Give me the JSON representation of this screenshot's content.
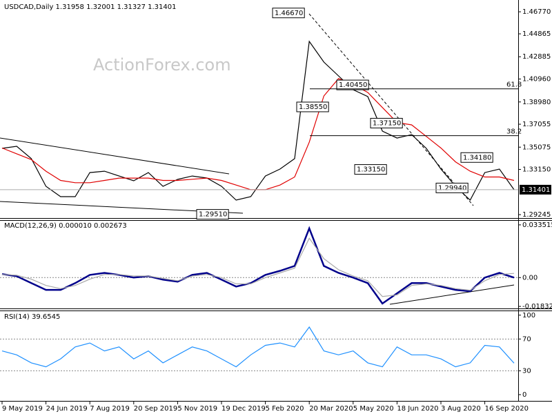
{
  "chart_data": [
    {
      "type": "line",
      "title": "USDCAD,Daily  1.31958 1.32001 1.31327 1.31401",
      "watermark": "ActionForex.com",
      "series": [
        {
          "name": "Close",
          "color": "#000000",
          "values": [
            1.3497,
            1.3515,
            1.3408,
            1.3169,
            1.308,
            1.308,
            1.3288,
            1.33,
            1.3258,
            1.3217,
            1.3288,
            1.3169,
            1.3229,
            1.3258,
            1.3241,
            1.3169,
            1.305,
            1.308,
            1.3258,
            1.3318,
            1.3408,
            1.4421,
            1.4242,
            1.4123,
            1.4004,
            1.3944,
            1.3646,
            1.3586,
            1.3616,
            1.3497,
            1.3318,
            1.3169,
            1.305,
            1.3288,
            1.3318,
            1.31401
          ]
        },
        {
          "name": "MA",
          "color": "#e00000",
          "values": [
            1.35,
            1.345,
            1.34,
            1.33,
            1.322,
            1.32,
            1.32,
            1.322,
            1.324,
            1.324,
            1.324,
            1.322,
            1.322,
            1.323,
            1.324,
            1.322,
            1.318,
            1.314,
            1.314,
            1.318,
            1.325,
            1.355,
            1.395,
            1.41,
            1.405,
            1.398,
            1.385,
            1.372,
            1.37,
            1.36,
            1.35,
            1.338,
            1.33,
            1.325,
            1.325,
            1.322
          ]
        }
      ],
      "ylim": [
        1.2895,
        1.4749
      ],
      "yticks": [
        {
          "value": 1.4677,
          "label": "1.46770"
        },
        {
          "value": 1.44865,
          "label": "1.44865"
        },
        {
          "value": 1.42885,
          "label": "1.42885"
        },
        {
          "value": 1.4096,
          "label": "1.40960"
        },
        {
          "value": 1.3898,
          "label": "1.38980"
        },
        {
          "value": 1.37055,
          "label": "1.37055"
        },
        {
          "value": 1.35075,
          "label": "1.35075"
        },
        {
          "value": 1.3315,
          "label": "1.33150"
        },
        {
          "value": 1.29245,
          "label": "1.29245"
        }
      ],
      "last_price": {
        "value": 1.31401,
        "label": "1.31401"
      },
      "annotations": [
        {
          "value": 1.4667,
          "label": "1.46670"
        },
        {
          "value": 1.4045,
          "label": "1.40450"
        },
        {
          "value": 1.3855,
          "label": "1.38550"
        },
        {
          "value": 1.3715,
          "label": "1.37150"
        },
        {
          "value": 1.3315,
          "label": "1.33150"
        },
        {
          "value": 1.3418,
          "label": "1.34180"
        },
        {
          "value": 1.2951,
          "label": "1.29510"
        },
        {
          "value": 1.2994,
          "label": "1.29940"
        }
      ],
      "fib_levels": [
        61.8,
        38.2
      ]
    },
    {
      "type": "line",
      "title": "MACD(12,26,9) 0.000010 0.002673",
      "series": [
        {
          "name": "MACD",
          "color": "#00008b",
          "values": [
            0.0022,
            0.0009,
            -0.0035,
            -0.0078,
            -0.0078,
            -0.0035,
            0.0017,
            0.003,
            0.0017,
            0,
            0.0009,
            -0.0013,
            -0.0026,
            0.0017,
            0.003,
            -0.0013,
            -0.0057,
            -0.0035,
            0.0017,
            0.0043,
            0.0074,
            0.0313,
            0.0074,
            0.003,
            0,
            -0.0035,
            -0.0165,
            -0.01,
            -0.0035,
            -0.0035,
            -0.0057,
            -0.0078,
            -0.0087,
            0,
            0.003,
            1e-05
          ]
        },
        {
          "name": "Signal",
          "color": "#a9a9a9",
          "values": [
            0.002,
            0.0015,
            -0.001,
            -0.005,
            -0.007,
            -0.005,
            -0.001,
            0.002,
            0.002,
            0.001,
            0.001,
            -0.0005,
            -0.002,
            0.001,
            0.002,
            0,
            -0.004,
            -0.004,
            0,
            0.003,
            0.006,
            0.025,
            0.012,
            0.005,
            0.001,
            -0.002,
            -0.012,
            -0.011,
            -0.005,
            -0.004,
            -0.005,
            -0.007,
            -0.008,
            -0.002,
            0.002,
            0.002673
          ]
        }
      ],
      "ylim": [
        -0.0196,
        0.0361
      ],
      "yticks": [
        0.033515,
        {
          "value": 0,
          "label": "0.00"
        },
        -0.018324
      ],
      "levels": [
        0
      ]
    },
    {
      "type": "line",
      "title": "RSI(14) 39.6545",
      "categories": [
        "9 May 2019",
        null,
        null,
        "24 Jun 2019",
        null,
        null,
        "7 Aug 2019",
        null,
        null,
        "20 Sep 2019",
        null,
        null,
        "5 Nov 2019",
        null,
        null,
        "19 Dec 2019",
        null,
        null,
        "5 Feb 2020",
        null,
        null,
        "20 Mar 2020",
        null,
        null,
        "5 May 2020",
        null,
        null,
        "18 Jun 2020",
        null,
        null,
        "3 Aug 2020",
        null,
        null,
        "16 Sep 2020",
        null,
        null
      ],
      "series": [
        {
          "name": "RSI",
          "color": "#1e90ff",
          "values": [
            55,
            50,
            40,
            35,
            45,
            60,
            65,
            55,
            60,
            45,
            55,
            40,
            50,
            60,
            55,
            45,
            35,
            50,
            62,
            65,
            60,
            85,
            55,
            50,
            55,
            40,
            35,
            60,
            50,
            50,
            45,
            35,
            40,
            62,
            60,
            39.6545
          ]
        }
      ],
      "ylim": [
        -7,
        105
      ],
      "yticks": [
        100,
        70,
        30,
        0
      ],
      "levels": [
        70,
        30
      ]
    }
  ]
}
